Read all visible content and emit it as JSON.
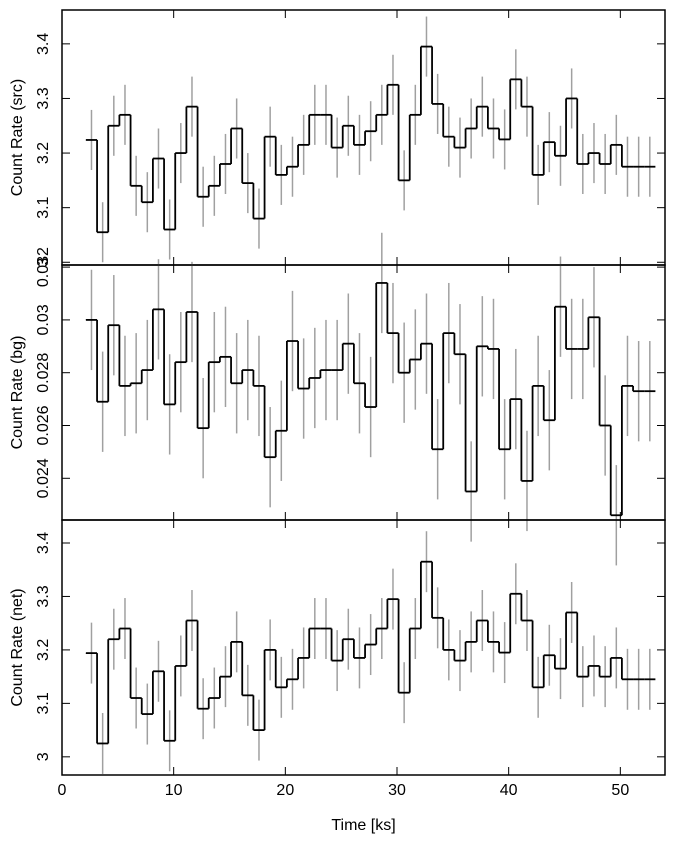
{
  "chart_data": [
    {
      "type": "step",
      "ylabel": "Count Rate (src)",
      "color": "#000000",
      "error_color": "#a0a0a0",
      "xlim": [
        0,
        54
      ],
      "ylim": [
        2.995,
        3.462
      ],
      "yticks": [
        3,
        3.1,
        3.2,
        3.3,
        3.4
      ],
      "x": [
        2.64,
        3.64,
        4.64,
        5.64,
        6.64,
        7.64,
        8.64,
        9.64,
        10.64,
        11.64,
        12.64,
        13.64,
        14.64,
        15.64,
        16.64,
        17.64,
        18.64,
        19.64,
        20.64,
        21.64,
        22.64,
        23.64,
        24.64,
        25.64,
        26.64,
        27.64,
        28.64,
        29.64,
        30.64,
        31.64,
        32.64,
        33.64,
        34.64,
        35.64,
        36.64,
        37.64,
        38.64,
        39.64,
        40.64,
        41.64,
        42.64,
        43.64,
        44.64,
        45.64,
        46.64,
        47.64,
        48.64,
        49.64,
        50.64,
        51.64,
        52.64
      ],
      "values": [
        3.224,
        3.055,
        3.25,
        3.27,
        3.14,
        3.11,
        3.19,
        3.06,
        3.2,
        3.285,
        3.12,
        3.14,
        3.18,
        3.245,
        3.145,
        3.08,
        3.23,
        3.16,
        3.175,
        3.215,
        3.27,
        3.27,
        3.21,
        3.25,
        3.215,
        3.24,
        3.27,
        3.325,
        3.15,
        3.27,
        3.395,
        3.29,
        3.23,
        3.21,
        3.245,
        3.285,
        3.245,
        3.225,
        3.335,
        3.285,
        3.16,
        3.22,
        3.195,
        3.3,
        3.18,
        3.2,
        3.18,
        3.215,
        3.175,
        3.175,
        3.175
      ],
      "errors": [
        0.055,
        0.055,
        0.055,
        0.055,
        0.055,
        0.055,
        0.055,
        0.055,
        0.055,
        0.055,
        0.055,
        0.055,
        0.055,
        0.055,
        0.055,
        0.055,
        0.055,
        0.055,
        0.055,
        0.055,
        0.055,
        0.055,
        0.055,
        0.055,
        0.055,
        0.055,
        0.055,
        0.055,
        0.055,
        0.055,
        0.055,
        0.055,
        0.055,
        0.055,
        0.055,
        0.055,
        0.055,
        0.055,
        0.055,
        0.055,
        0.055,
        0.055,
        0.055,
        0.055,
        0.055,
        0.055,
        0.055,
        0.055,
        0.055,
        0.055,
        0.055
      ]
    },
    {
      "type": "step",
      "ylabel": "Count Rate (bg)",
      "color": "#000000",
      "error_color": "#a0a0a0",
      "xlim": [
        0,
        54
      ],
      "ylim": [
        0.02242,
        0.03208
      ],
      "yticks": [
        0.024,
        0.026,
        0.028,
        0.03,
        0.032
      ],
      "x": [
        2.64,
        3.64,
        4.64,
        5.64,
        6.64,
        7.64,
        8.64,
        9.64,
        10.64,
        11.64,
        12.64,
        13.64,
        14.64,
        15.64,
        16.64,
        17.64,
        18.64,
        19.64,
        20.64,
        21.64,
        22.64,
        23.64,
        24.64,
        25.64,
        26.64,
        27.64,
        28.64,
        29.64,
        30.64,
        31.64,
        32.64,
        33.64,
        34.64,
        35.64,
        36.64,
        37.64,
        38.64,
        39.64,
        40.64,
        41.64,
        42.64,
        43.64,
        44.64,
        45.64,
        46.64,
        47.64,
        48.64,
        49.64,
        50.64,
        51.64,
        52.64
      ],
      "values": [
        0.03,
        0.0269,
        0.0298,
        0.0275,
        0.0276,
        0.0281,
        0.0304,
        0.0268,
        0.0284,
        0.0303,
        0.0259,
        0.0284,
        0.0286,
        0.0276,
        0.0281,
        0.0275,
        0.0248,
        0.0258,
        0.0292,
        0.0274,
        0.0278,
        0.0281,
        0.0281,
        0.0291,
        0.0276,
        0.0267,
        0.0314,
        0.0295,
        0.028,
        0.0285,
        0.0291,
        0.0251,
        0.0295,
        0.0287,
        0.0235,
        0.029,
        0.0289,
        0.0251,
        0.027,
        0.0239,
        0.0275,
        0.0262,
        0.0305,
        0.0289,
        0.0289,
        0.0301,
        0.026,
        0.0226,
        0.0275,
        0.0273,
        0.0273
      ],
      "errors": [
        0.0019,
        0.0019,
        0.0019,
        0.0019,
        0.0019,
        0.0019,
        0.0019,
        0.0019,
        0.0019,
        0.0019,
        0.0019,
        0.0019,
        0.0019,
        0.0019,
        0.0019,
        0.0019,
        0.0019,
        0.0019,
        0.0019,
        0.0019,
        0.0019,
        0.0019,
        0.0019,
        0.0019,
        0.0019,
        0.0019,
        0.0019,
        0.0019,
        0.0019,
        0.0019,
        0.0019,
        0.0019,
        0.0019,
        0.0019,
        0.0019,
        0.0019,
        0.0019,
        0.0019,
        0.0019,
        0.0019,
        0.0019,
        0.0019,
        0.0019,
        0.0019,
        0.0019,
        0.0019,
        0.0019,
        0.0019,
        0.0019,
        0.0019,
        0.0019
      ]
    },
    {
      "type": "step",
      "ylabel": "Count Rate (net)",
      "xlabel": "Time [ks]",
      "color": "#000000",
      "error_color": "#a0a0a0",
      "xlim": [
        0,
        54
      ],
      "xticks": [
        0,
        10,
        20,
        30,
        40,
        50
      ],
      "ylim": [
        2.966,
        3.443
      ],
      "yticks": [
        3,
        3.1,
        3.2,
        3.3,
        3.4
      ],
      "x": [
        2.64,
        3.64,
        4.64,
        5.64,
        6.64,
        7.64,
        8.64,
        9.64,
        10.64,
        11.64,
        12.64,
        13.64,
        14.64,
        15.64,
        16.64,
        17.64,
        18.64,
        19.64,
        20.64,
        21.64,
        22.64,
        23.64,
        24.64,
        25.64,
        26.64,
        27.64,
        28.64,
        29.64,
        30.64,
        31.64,
        32.64,
        33.64,
        34.64,
        35.64,
        36.64,
        37.64,
        38.64,
        39.64,
        40.64,
        41.64,
        42.64,
        43.64,
        44.64,
        45.64,
        46.64,
        47.64,
        48.64,
        49.64,
        50.64,
        51.64,
        52.64
      ],
      "values": [
        3.194,
        3.025,
        3.22,
        3.24,
        3.11,
        3.08,
        3.16,
        3.03,
        3.17,
        3.255,
        3.09,
        3.11,
        3.15,
        3.215,
        3.115,
        3.05,
        3.2,
        3.13,
        3.145,
        3.185,
        3.24,
        3.24,
        3.18,
        3.22,
        3.185,
        3.21,
        3.24,
        3.295,
        3.12,
        3.24,
        3.365,
        3.26,
        3.2,
        3.18,
        3.215,
        3.255,
        3.215,
        3.195,
        3.305,
        3.255,
        3.13,
        3.19,
        3.165,
        3.27,
        3.15,
        3.17,
        3.15,
        3.185,
        3.145,
        3.145,
        3.145
      ],
      "errors": [
        0.057,
        0.057,
        0.057,
        0.057,
        0.057,
        0.057,
        0.057,
        0.057,
        0.057,
        0.057,
        0.057,
        0.057,
        0.057,
        0.057,
        0.057,
        0.057,
        0.057,
        0.057,
        0.057,
        0.057,
        0.057,
        0.057,
        0.057,
        0.057,
        0.057,
        0.057,
        0.057,
        0.057,
        0.057,
        0.057,
        0.057,
        0.057,
        0.057,
        0.057,
        0.057,
        0.057,
        0.057,
        0.057,
        0.057,
        0.057,
        0.057,
        0.057,
        0.057,
        0.057,
        0.057,
        0.057,
        0.057,
        0.057,
        0.057,
        0.057,
        0.057
      ]
    }
  ]
}
